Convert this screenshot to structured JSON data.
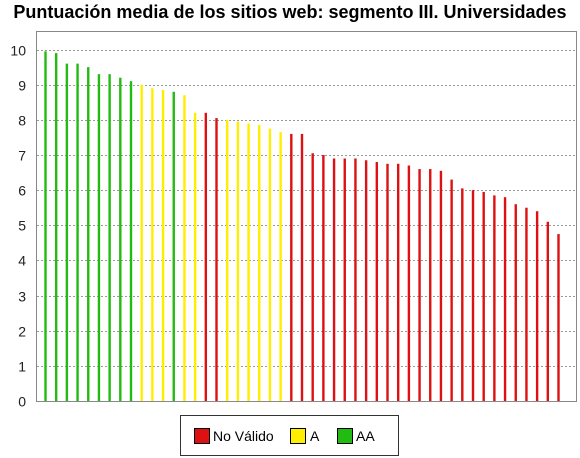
{
  "chart_data": {
    "type": "bar",
    "title": "Puntuación media de los sitios web: segmento III. Universidades",
    "xlabel": "",
    "ylabel": "",
    "ylim": [
      0,
      10.5
    ],
    "yticks": [
      "0",
      "1",
      "2",
      "3",
      "4",
      "5",
      "6",
      "7",
      "8",
      "9",
      "10"
    ],
    "grid": true,
    "legend_position": "bottom",
    "legend": [
      {
        "label": "No Válido",
        "color": "#dd1111",
        "key": "no_valido"
      },
      {
        "label": "A",
        "color": "#ffee00",
        "key": "a"
      },
      {
        "label": "AA",
        "color": "#22bb11",
        "key": "aa"
      }
    ],
    "values": [
      9.95,
      9.9,
      9.6,
      9.6,
      9.5,
      9.3,
      9.3,
      9.2,
      9.1,
      9.0,
      8.9,
      8.85,
      8.8,
      8.7,
      8.2,
      8.2,
      8.05,
      8.0,
      7.95,
      7.9,
      7.85,
      7.75,
      7.65,
      7.6,
      7.6,
      7.05,
      7.0,
      6.9,
      6.9,
      6.9,
      6.85,
      6.8,
      6.75,
      6.75,
      6.7,
      6.6,
      6.6,
      6.55,
      6.3,
      6.05,
      6.0,
      5.95,
      5.85,
      5.8,
      5.6,
      5.5,
      5.4,
      5.1,
      4.75
    ],
    "categories": [
      "aa",
      "aa",
      "aa",
      "aa",
      "aa",
      "aa",
      "aa",
      "aa",
      "aa",
      "a",
      "a",
      "a",
      "aa",
      "a",
      "a",
      "no_valido",
      "no_valido",
      "a",
      "a",
      "a",
      "a",
      "a",
      "a",
      "no_valido",
      "no_valido",
      "no_valido",
      "no_valido",
      "no_valido",
      "no_valido",
      "no_valido",
      "no_valido",
      "no_valido",
      "no_valido",
      "no_valido",
      "no_valido",
      "no_valido",
      "no_valido",
      "no_valido",
      "no_valido",
      "no_valido",
      "no_valido",
      "no_valido",
      "no_valido",
      "no_valido",
      "no_valido",
      "no_valido",
      "no_valido",
      "no_valido",
      "no_valido"
    ]
  }
}
